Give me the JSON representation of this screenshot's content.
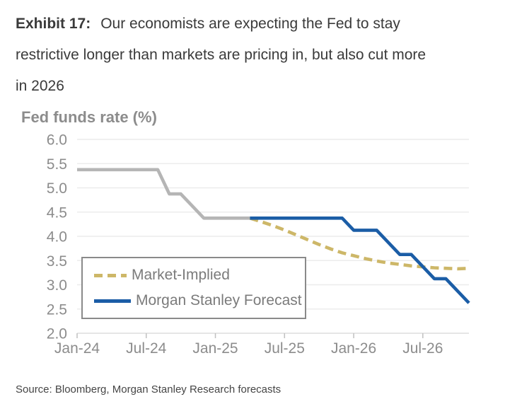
{
  "header": {
    "exhibit_label": "Exhibit 17:",
    "title_line1": "Our economists are expecting the Fed to stay",
    "title_line2": "restrictive longer than markets are pricing in, but also cut more",
    "title_line3": "in 2026"
  },
  "source_note": "Source: Bloomberg, Morgan Stanley Research forecasts",
  "colors": {
    "title_text": "#3a3a3a",
    "heading_text": "#8c8c8c",
    "axis_text": "#8c8c8c",
    "gridline": "#ececec",
    "axis_line": "#dedede",
    "tick": "#c0c0c0",
    "legend_border": "#8a8a8a",
    "legend_text": "#7b7b7b",
    "actual_line": "#b5b5b5",
    "forecast_blue": "#1b5da6",
    "market_implied_tan": "#cdb768",
    "background": "#ffffff"
  },
  "chart_data": {
    "type": "line",
    "title": "Fed funds rate (%)",
    "xlabel": "",
    "ylabel": "Fed funds rate (%)",
    "ylim": [
      2.0,
      6.0
    ],
    "ytick_step": 0.5,
    "grid": true,
    "x_unit": "months, index 0 = Jan-24",
    "x_range_month_index": [
      0,
      34
    ],
    "x_ticks": [
      {
        "month_index": 0,
        "label": "Jan-24"
      },
      {
        "month_index": 6,
        "label": "Jul-24"
      },
      {
        "month_index": 12,
        "label": "Jan-25"
      },
      {
        "month_index": 18,
        "label": "Jul-25"
      },
      {
        "month_index": 24,
        "label": "Jan-26"
      },
      {
        "month_index": 30,
        "label": "Jul-26"
      }
    ],
    "series": [
      {
        "name": "Fed funds rate (historical)",
        "color_key": "actual_line",
        "style": "solid",
        "in_legend": false,
        "points": [
          [
            0,
            5.375
          ],
          [
            1,
            5.375
          ],
          [
            2,
            5.375
          ],
          [
            3,
            5.375
          ],
          [
            4,
            5.375
          ],
          [
            5,
            5.375
          ],
          [
            6,
            5.375
          ],
          [
            7,
            5.375
          ],
          [
            8,
            4.875
          ],
          [
            9,
            4.875
          ],
          [
            10,
            4.625
          ],
          [
            11,
            4.375
          ],
          [
            12,
            4.375
          ],
          [
            13,
            4.375
          ],
          [
            14,
            4.375
          ],
          [
            15,
            4.375
          ]
        ]
      },
      {
        "name": "Market-Implied",
        "color_key": "market_implied_tan",
        "style": "dashed",
        "in_legend": true,
        "points": [
          [
            15,
            4.375
          ],
          [
            16,
            4.3
          ],
          [
            17,
            4.22
          ],
          [
            18,
            4.13
          ],
          [
            19,
            4.03
          ],
          [
            20,
            3.93
          ],
          [
            21,
            3.83
          ],
          [
            22,
            3.74
          ],
          [
            23,
            3.66
          ],
          [
            24,
            3.6
          ],
          [
            25,
            3.54
          ],
          [
            26,
            3.49
          ],
          [
            27,
            3.45
          ],
          [
            28,
            3.42
          ],
          [
            29,
            3.39
          ],
          [
            30,
            3.37
          ],
          [
            31,
            3.35
          ],
          [
            32,
            3.34
          ],
          [
            33,
            3.33
          ],
          [
            34,
            3.34
          ]
        ]
      },
      {
        "name": "Morgan Stanley Forecast",
        "color_key": "forecast_blue",
        "style": "solid",
        "in_legend": true,
        "points": [
          [
            15,
            4.375
          ],
          [
            16,
            4.375
          ],
          [
            17,
            4.375
          ],
          [
            18,
            4.375
          ],
          [
            19,
            4.375
          ],
          [
            20,
            4.375
          ],
          [
            21,
            4.375
          ],
          [
            22,
            4.375
          ],
          [
            23,
            4.375
          ],
          [
            24,
            4.125
          ],
          [
            25,
            4.125
          ],
          [
            26,
            4.125
          ],
          [
            27,
            3.875
          ],
          [
            28,
            3.625
          ],
          [
            29,
            3.625
          ],
          [
            30,
            3.375
          ],
          [
            31,
            3.125
          ],
          [
            32,
            3.125
          ],
          [
            33,
            2.875
          ],
          [
            34,
            2.625
          ]
        ]
      }
    ],
    "legend": {
      "position": "inside bottom-left",
      "items": [
        {
          "label": "Market-Implied",
          "series": "Market-Implied"
        },
        {
          "label": "Morgan Stanley Forecast",
          "series": "Morgan Stanley Forecast"
        }
      ]
    }
  }
}
